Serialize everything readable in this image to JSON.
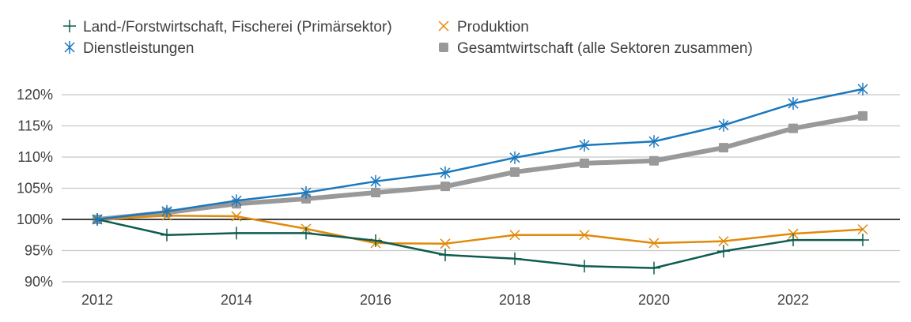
{
  "chart_data": {
    "type": "line",
    "title": "",
    "xlabel": "",
    "ylabel": "",
    "x": [
      2012,
      2013,
      2014,
      2015,
      2016,
      2017,
      2018,
      2019,
      2020,
      2021,
      2022,
      2023
    ],
    "x_ticks": [
      "2012",
      "2014",
      "2016",
      "2018",
      "2020",
      "2022"
    ],
    "x_tick_values": [
      2012,
      2014,
      2016,
      2018,
      2020,
      2022
    ],
    "ylim": [
      90,
      122
    ],
    "y_ticks": [
      "90%",
      "95%",
      "100%",
      "105%",
      "110%",
      "115%",
      "120%"
    ],
    "y_tick_values": [
      90,
      95,
      100,
      105,
      110,
      115,
      120
    ],
    "reference_line": 100,
    "grid": true,
    "legend_position": "top",
    "series": [
      {
        "name": "Land-/Forstwirtschaft, Fischerei (Primärsektor)",
        "color": "#0d5c4f",
        "marker": "plus",
        "values": [
          100,
          97.5,
          97.8,
          97.8,
          96.6,
          94.3,
          93.7,
          92.5,
          92.2,
          94.9,
          96.7,
          96.7
        ]
      },
      {
        "name": "Produktion",
        "color": "#e08a0b",
        "marker": "x",
        "values": [
          100,
          100.6,
          100.5,
          98.5,
          96.2,
          96.1,
          97.5,
          97.5,
          96.2,
          96.5,
          97.7,
          98.4
        ]
      },
      {
        "name": "Dienstleistungen",
        "color": "#1a78bd",
        "marker": "star",
        "values": [
          100,
          101.3,
          103.0,
          104.3,
          106.1,
          107.5,
          109.9,
          111.9,
          112.5,
          115.1,
          118.6,
          120.9
        ]
      },
      {
        "name": "Gesamtwirtschaft (alle Sektoren zusammen)",
        "color": "#999999",
        "marker": "square",
        "values": [
          100,
          101.1,
          102.5,
          103.3,
          104.3,
          105.3,
          107.6,
          109.0,
          109.4,
          111.5,
          114.6,
          116.6
        ]
      }
    ]
  }
}
